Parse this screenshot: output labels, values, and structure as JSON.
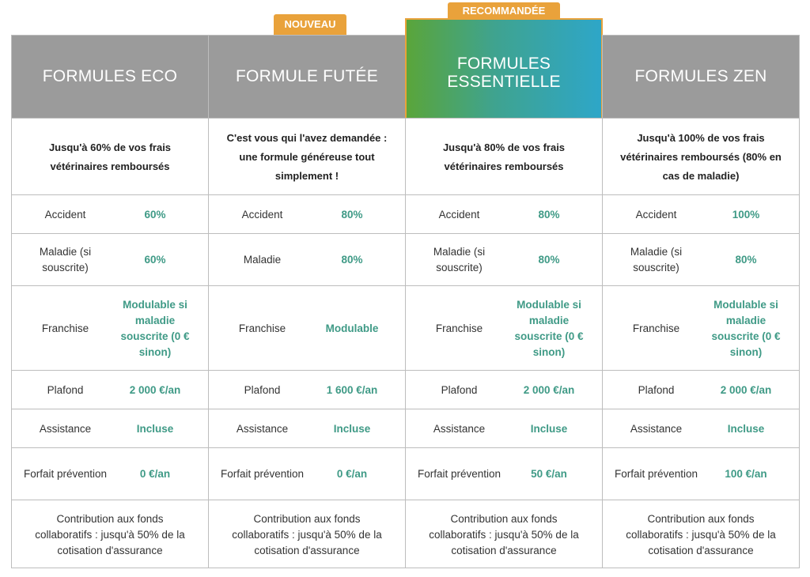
{
  "badges": {
    "nouveau": "NOUVEAU",
    "recommande": "RECOMMANDÉE"
  },
  "colors": {
    "header_grey": "#9b9b9b",
    "badge_orange": "#e9a23b",
    "value_green": "#3f9a86",
    "gradient": [
      "#5aa53a",
      "#2ea6c8"
    ]
  },
  "plans": [
    {
      "title": "FORMULES ECO",
      "description": "Jusqu'à 60% de vos frais vétérinaires remboursés",
      "accident": {
        "label": "Accident",
        "value": "60%"
      },
      "maladie": {
        "label": "Maladie (si souscrite)",
        "value": "60%"
      },
      "franchise": {
        "label": "Franchise",
        "value": "Modulable si maladie souscrite (0 € sinon)"
      },
      "plafond": {
        "label": "Plafond",
        "value": "2 000 €/an"
      },
      "assistance": {
        "label": "Assistance",
        "value": "Incluse"
      },
      "prevention": {
        "label": "Forfait prévention",
        "value": "0 €/an"
      },
      "contribution": "Contribution aux fonds collaboratifs : jusqu'à 50% de la cotisation d'assurance"
    },
    {
      "title": "FORMULE FUTÉE",
      "description": "C'est vous qui l'avez demandée : une formule généreuse tout simplement !",
      "accident": {
        "label": "Accident",
        "value": "80%"
      },
      "maladie": {
        "label": "Maladie",
        "value": "80%"
      },
      "franchise": {
        "label": "Franchise",
        "value": "Modulable"
      },
      "plafond": {
        "label": "Plafond",
        "value": "1 600 €/an"
      },
      "assistance": {
        "label": "Assistance",
        "value": "Incluse"
      },
      "prevention": {
        "label": "Forfait prévention",
        "value": "0 €/an"
      },
      "contribution": "Contribution aux fonds collaboratifs : jusqu'à 50% de la cotisation d'assurance"
    },
    {
      "title": "FORMULES ESSENTIELLE",
      "description": "Jusqu'à 80% de vos frais vétérinaires remboursés",
      "accident": {
        "label": "Accident",
        "value": "80%"
      },
      "maladie": {
        "label": "Maladie (si souscrite)",
        "value": "80%"
      },
      "franchise": {
        "label": "Franchise",
        "value": "Modulable si maladie souscrite (0 € sinon)"
      },
      "plafond": {
        "label": "Plafond",
        "value": "2 000 €/an"
      },
      "assistance": {
        "label": "Assistance",
        "value": "Incluse"
      },
      "prevention": {
        "label": "Forfait prévention",
        "value": "50 €/an"
      },
      "contribution": "Contribution aux fonds collaboratifs : jusqu'à 50% de la cotisation d'assurance"
    },
    {
      "title": "FORMULES ZEN",
      "description": "Jusqu'à 100% de vos frais vétérinaires remboursés (80% en cas de maladie)",
      "accident": {
        "label": "Accident",
        "value": "100%"
      },
      "maladie": {
        "label": "Maladie (si souscrite)",
        "value": "80%"
      },
      "franchise": {
        "label": "Franchise",
        "value": "Modulable si maladie souscrite (0 € sinon)"
      },
      "plafond": {
        "label": "Plafond",
        "value": "2 000 €/an"
      },
      "assistance": {
        "label": "Assistance",
        "value": "Incluse"
      },
      "prevention": {
        "label": "Forfait prévention",
        "value": "100 €/an"
      },
      "contribution": "Contribution aux fonds collaboratifs : jusqu'à 50% de la cotisation d'assurance"
    }
  ]
}
